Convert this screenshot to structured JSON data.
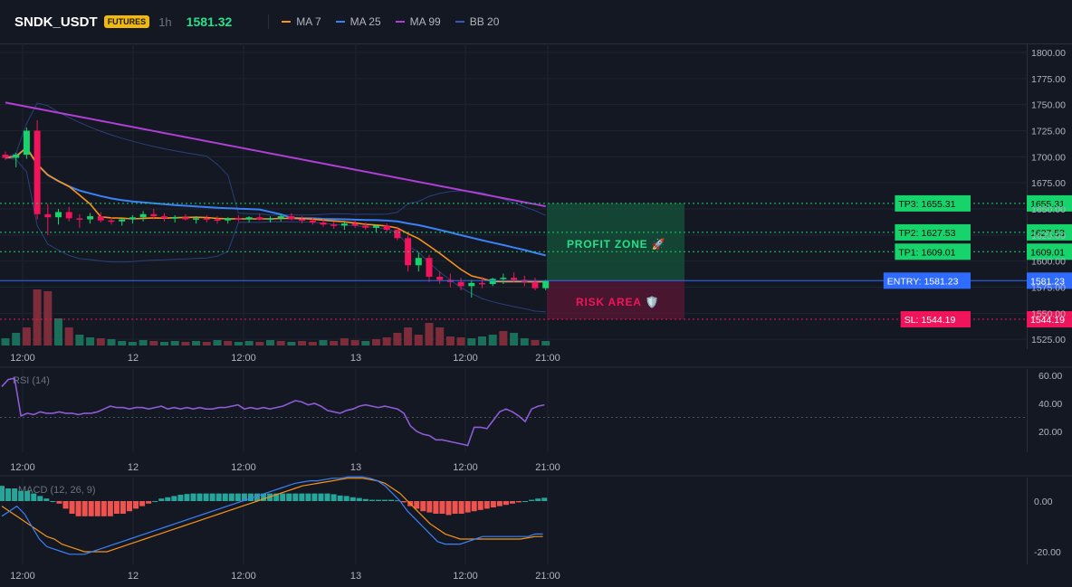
{
  "header": {
    "symbol": "SNDK_USDT",
    "badge": "FUTURES",
    "interval": "1h",
    "last_price": "1581.32",
    "indicators": [
      {
        "label": "MA 7",
        "color": "#f7931a"
      },
      {
        "label": "MA 25",
        "color": "#3b82f6"
      },
      {
        "label": "MA 99",
        "color": "#b03fd6"
      },
      {
        "label": "BB 20",
        "color": "#3458b8"
      }
    ]
  },
  "price_axis": [
    "1800.00",
    "1775.00",
    "1750.00",
    "1725.00",
    "1700.00",
    "1675.00",
    "1650.00",
    "1625.00",
    "1600.00",
    "1575.00",
    "1550.00",
    "1525.00"
  ],
  "levels": [
    {
      "name": "tp3",
      "label": "TP3: 1655.31",
      "value_text": "1655.31",
      "value": 1655.31,
      "color": "#16d46b"
    },
    {
      "name": "tp2",
      "label": "TP2: 1627.53",
      "value_text": "1627.53",
      "value": 1627.53,
      "color": "#16d46b"
    },
    {
      "name": "tp1",
      "label": "TP1: 1609.01",
      "value_text": "1609.01",
      "value": 1609.01,
      "color": "#16d46b"
    },
    {
      "name": "entry",
      "label": "ENTRY: 1581.23",
      "value_text": "1581.23",
      "value": 1581.23,
      "color": "#2f6bff"
    },
    {
      "name": "sl",
      "label": "SL: 1544.19",
      "value_text": "1544.19",
      "value": 1544.19,
      "color": "#f0145a"
    }
  ],
  "zones": {
    "profit": "PROFIT ZONE 🚀",
    "risk": "RISK AREA 🛡️"
  },
  "time_axis": [
    "12:00",
    "12",
    "12:00",
    "13",
    "12:00",
    "21:00"
  ],
  "rsi": {
    "label": "RSI (14)",
    "axis": [
      "60.00",
      "40.00",
      "20.00"
    ],
    "values": [
      52,
      57,
      58,
      31,
      33,
      32,
      34,
      33,
      33,
      34,
      33,
      33,
      32,
      33,
      33,
      34,
      36,
      38,
      37,
      37,
      36,
      37,
      37,
      36,
      37,
      38,
      36,
      37,
      36,
      37,
      36,
      37,
      36,
      36,
      37,
      37,
      38,
      39,
      36,
      37,
      36,
      37,
      36,
      37,
      38,
      40,
      42,
      41,
      39,
      40,
      38,
      35,
      34,
      33,
      35,
      36,
      38,
      39,
      38,
      37,
      38,
      37,
      36,
      33,
      24,
      20,
      18,
      17,
      14,
      14,
      13,
      12,
      11,
      10,
      23,
      23,
      22,
      28,
      34,
      36,
      34,
      31,
      27,
      36,
      38,
      39
    ]
  },
  "macd": {
    "label": "MACD (12, 26, 9)",
    "axis": [
      "0.00",
      "-20.00"
    ],
    "hist": [
      6,
      5,
      5,
      4,
      4,
      3,
      2,
      1,
      0,
      -1,
      -3,
      -5,
      -6,
      -6,
      -6,
      -6,
      -6,
      -6,
      -5,
      -5,
      -4,
      -3,
      -2,
      -1,
      0,
      1,
      1.5,
      2,
      2.5,
      2.8,
      3,
      3,
      3,
      3,
      3,
      3,
      3,
      3,
      3,
      3,
      3,
      3,
      3,
      3,
      3,
      3,
      3,
      3,
      3,
      3,
      3,
      3,
      2.7,
      2.2,
      2,
      1.5,
      1.2,
      0.8,
      0.5,
      0.5,
      0.5,
      0.5,
      0.3,
      -0.5,
      -2,
      -3,
      -4,
      -4.5,
      -5,
      -5,
      -5.5,
      -5,
      -5,
      -4.5,
      -4,
      -3.5,
      -3,
      -2.5,
      -2,
      -1.5,
      -1,
      -0.5,
      0,
      0.5,
      1,
      1.3
    ],
    "macd_line": [
      -6,
      -4,
      -2,
      -5,
      -10,
      -15,
      -18,
      -19,
      -20,
      -21,
      -21,
      -21,
      -20,
      -19,
      -18,
      -17,
      -16,
      -15,
      -14,
      -13,
      -12,
      -11,
      -10,
      -9,
      -8,
      -7,
      -6,
      -5,
      -4,
      -3,
      -2,
      -1,
      0,
      1,
      2,
      3,
      4,
      5,
      6,
      7,
      7.5,
      8,
      8,
      8.5,
      9,
      9,
      9.5,
      9.5,
      9.5,
      9,
      8,
      6,
      3,
      0,
      -4,
      -7,
      -10,
      -13,
      -16,
      -17,
      -17,
      -17,
      -16,
      -15,
      -14,
      -14,
      -14,
      -14,
      -14,
      -14,
      -14,
      -13,
      -13
    ],
    "signal_line": [
      -2,
      -4,
      -6,
      -8,
      -10,
      -12,
      -14,
      -15,
      -17,
      -18,
      -19,
      -20,
      -20,
      -20,
      -20,
      -19,
      -18,
      -17,
      -16,
      -15,
      -14,
      -13,
      -12,
      -11,
      -10,
      -9,
      -8,
      -7,
      -6,
      -5,
      -4,
      -3,
      -2,
      -1,
      0,
      1,
      2,
      3,
      4,
      5,
      6,
      6.5,
      7,
      7.5,
      8,
      8.5,
      9,
      9,
      9,
      8.5,
      8,
      7,
      5,
      3,
      0,
      -3,
      -6,
      -9,
      -11,
      -13,
      -14,
      -15,
      -15,
      -15,
      -15,
      -15,
      -15,
      -15,
      -15,
      -15,
      -14.5,
      -14,
      -14
    ]
  },
  "candles": [
    [
      1702,
      1705,
      1697,
      1699
    ],
    [
      1699,
      1704,
      1690,
      1702
    ],
    [
      1702,
      1728,
      1698,
      1725
    ],
    [
      1725,
      1735,
      1640,
      1645
    ],
    [
      1645,
      1655,
      1625,
      1642
    ],
    [
      1642,
      1650,
      1635,
      1647
    ],
    [
      1647,
      1652,
      1638,
      1641
    ],
    [
      1641,
      1645,
      1632,
      1640
    ],
    [
      1640,
      1646,
      1636,
      1643
    ],
    [
      1643,
      1647,
      1637,
      1639
    ],
    [
      1639,
      1642,
      1635,
      1638
    ],
    [
      1638,
      1641,
      1634,
      1640
    ],
    [
      1640,
      1644,
      1636,
      1642
    ],
    [
      1642,
      1648,
      1638,
      1645
    ],
    [
      1645,
      1650,
      1640,
      1643
    ],
    [
      1643,
      1646,
      1638,
      1641
    ],
    [
      1641,
      1644,
      1637,
      1642
    ],
    [
      1642,
      1645,
      1639,
      1640
    ],
    [
      1640,
      1643,
      1636,
      1641
    ],
    [
      1641,
      1644,
      1637,
      1640
    ],
    [
      1640,
      1643,
      1636,
      1639
    ],
    [
      1639,
      1642,
      1636,
      1641
    ],
    [
      1641,
      1644,
      1638,
      1640
    ],
    [
      1640,
      1643,
      1637,
      1642
    ],
    [
      1642,
      1645,
      1639,
      1640
    ],
    [
      1640,
      1643,
      1637,
      1641
    ],
    [
      1641,
      1645,
      1638,
      1643
    ],
    [
      1643,
      1646,
      1639,
      1640
    ],
    [
      1640,
      1643,
      1636,
      1639
    ],
    [
      1639,
      1642,
      1635,
      1637
    ],
    [
      1637,
      1640,
      1633,
      1635
    ],
    [
      1635,
      1638,
      1631,
      1634
    ],
    [
      1634,
      1637,
      1630,
      1636
    ],
    [
      1636,
      1639,
      1632,
      1634
    ],
    [
      1634,
      1637,
      1630,
      1632
    ],
    [
      1632,
      1635,
      1628,
      1634
    ],
    [
      1634,
      1636,
      1628,
      1630
    ],
    [
      1630,
      1633,
      1620,
      1622
    ],
    [
      1622,
      1625,
      1590,
      1596
    ],
    [
      1596,
      1608,
      1590,
      1603
    ],
    [
      1603,
      1606,
      1580,
      1585
    ],
    [
      1585,
      1590,
      1578,
      1582
    ],
    [
      1582,
      1588,
      1575,
      1580
    ],
    [
      1580,
      1584,
      1572,
      1576
    ],
    [
      1576,
      1582,
      1565,
      1579
    ],
    [
      1579,
      1585,
      1574,
      1578
    ],
    [
      1578,
      1584,
      1576,
      1583
    ],
    [
      1583,
      1588,
      1578,
      1584
    ],
    [
      1584,
      1589,
      1580,
      1582
    ],
    [
      1582,
      1586,
      1576,
      1580
    ],
    [
      1580,
      1584,
      1572,
      1574
    ],
    [
      1574,
      1582,
      1572,
      1581
    ]
  ],
  "volume": [
    [
      8,
      "up"
    ],
    [
      14,
      "up"
    ],
    [
      20,
      "down"
    ],
    [
      62,
      "down"
    ],
    [
      60,
      "down"
    ],
    [
      30,
      "up"
    ],
    [
      20,
      "down"
    ],
    [
      12,
      "up"
    ],
    [
      9,
      "up"
    ],
    [
      8,
      "down"
    ],
    [
      7,
      "up"
    ],
    [
      5,
      "up"
    ],
    [
      4,
      "up"
    ],
    [
      6,
      "up"
    ],
    [
      5,
      "down"
    ],
    [
      4,
      "up"
    ],
    [
      5,
      "up"
    ],
    [
      4,
      "down"
    ],
    [
      5,
      "up"
    ],
    [
      4,
      "down"
    ],
    [
      6,
      "up"
    ],
    [
      5,
      "down"
    ],
    [
      4,
      "up"
    ],
    [
      5,
      "up"
    ],
    [
      4,
      "down"
    ],
    [
      6,
      "up"
    ],
    [
      5,
      "down"
    ],
    [
      4,
      "up"
    ],
    [
      5,
      "down"
    ],
    [
      4,
      "down"
    ],
    [
      6,
      "up"
    ],
    [
      5,
      "down"
    ],
    [
      8,
      "down"
    ],
    [
      6,
      "down"
    ],
    [
      5,
      "up"
    ],
    [
      7,
      "down"
    ],
    [
      9,
      "down"
    ],
    [
      14,
      "down"
    ],
    [
      20,
      "down"
    ],
    [
      12,
      "down"
    ],
    [
      25,
      "down"
    ],
    [
      20,
      "down"
    ],
    [
      10,
      "down"
    ],
    [
      9,
      "down"
    ],
    [
      8,
      "up"
    ],
    [
      10,
      "up"
    ],
    [
      12,
      "up"
    ],
    [
      16,
      "down"
    ],
    [
      14,
      "up"
    ],
    [
      8,
      "up"
    ],
    [
      6,
      "down"
    ],
    [
      5,
      "up"
    ]
  ]
}
